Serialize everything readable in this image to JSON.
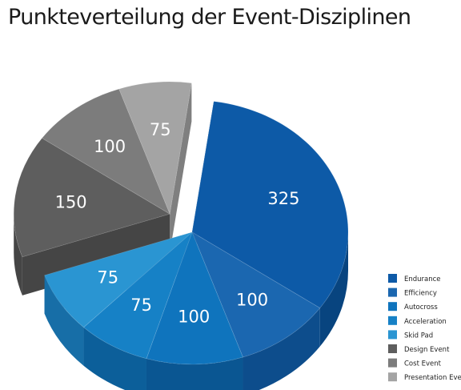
{
  "chart_data": {
    "type": "pie",
    "title": "Punkteverteilung der Event-Disziplinen",
    "categories": [
      "Endurance",
      "Efficiency",
      "Autocross",
      "Acceleration",
      "Skid Pad",
      "Design Event",
      "Cost Event",
      "Presentation Event"
    ],
    "values": [
      325,
      100,
      100,
      75,
      75,
      150,
      100,
      75
    ],
    "legend_position": "bottom-right",
    "colors": [
      "#0d5aa7",
      "#1b67b0",
      "#0f74bd",
      "#1681c6",
      "#2a95d2",
      "#5e5e5e",
      "#7c7c7c",
      "#a4a4a4"
    ],
    "side_colors": [
      "#08447f",
      "#0d4d8c",
      "#0a5692",
      "#0c5f9a",
      "#176ea7",
      "#454545",
      "#5c5c5c",
      "#7f7f7f"
    ]
  }
}
